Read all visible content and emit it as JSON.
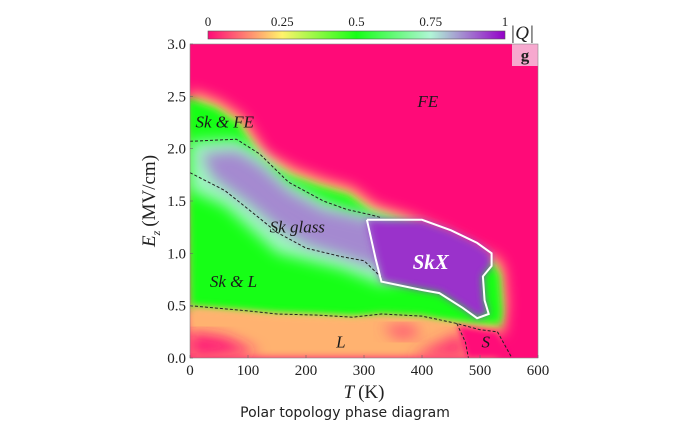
{
  "chart_data": {
    "type": "heatmap",
    "title": "",
    "xlabel": "T (K)",
    "xlabel_var": "T",
    "xlabel_unit": "(K)",
    "ylabel_var": "E",
    "ylabel_sub": "z",
    "ylabel_unit": "(MV/cm)",
    "xlim": [
      0,
      600
    ],
    "ylim": [
      0,
      3.0
    ],
    "x_ticks": [
      0,
      100,
      200,
      300,
      400,
      500,
      600
    ],
    "x_tick_labels": [
      "0",
      "100",
      "200",
      "300",
      "400",
      "500",
      "600"
    ],
    "y_ticks": [
      0,
      0.5,
      1.0,
      1.5,
      2.0,
      2.5,
      3.0
    ],
    "y_tick_labels": [
      "0.0",
      "0.5",
      "1.0",
      "1.5",
      "2.0",
      "2.5",
      "3.0"
    ],
    "colorbar": {
      "label": "|Q|",
      "range": [
        0,
        1
      ],
      "ticks": [
        0,
        0.25,
        0.5,
        0.75,
        1
      ],
      "tick_labels": [
        "0",
        "0.25",
        "0.5",
        "0.75",
        "1"
      ],
      "stops": [
        {
          "value": 0,
          "color": "#ff0a78"
        },
        {
          "value": 0.25,
          "color": "#fff36b"
        },
        {
          "value": 0.5,
          "color": "#16ff16"
        },
        {
          "value": 0.75,
          "color": "#b0f5d6"
        },
        {
          "value": 1,
          "color": "#9400c8"
        }
      ]
    },
    "panel_label": "g",
    "regions": [
      {
        "name": "FE",
        "label": "FE",
        "at": [
          410,
          2.4
        ],
        "value": 0.0
      },
      {
        "name": "Sk & FE",
        "label": "Sk & FE",
        "at": [
          60,
          2.2
        ],
        "value": 0.5
      },
      {
        "name": "Sk glass",
        "label": "Sk glass",
        "at": [
          185,
          1.2
        ],
        "value": 0.85
      },
      {
        "name": "SkX",
        "label": "SkX",
        "at": [
          415,
          0.85
        ],
        "value": 1.0
      },
      {
        "name": "Sk & L",
        "label": "Sk & L",
        "at": [
          75,
          0.68
        ],
        "value": 0.5
      },
      {
        "name": "L",
        "label": "L",
        "at": [
          260,
          0.1
        ],
        "value": 0.1
      },
      {
        "name": "S",
        "label": "S",
        "at": [
          510,
          0.1
        ],
        "value": 0.0
      }
    ],
    "boundaries": {
      "outer_top": [
        [
          0,
          2.55
        ],
        [
          50,
          2.45
        ],
        [
          90,
          2.3
        ],
        [
          130,
          1.95
        ],
        [
          180,
          1.8
        ],
        [
          230,
          1.7
        ],
        [
          280,
          1.62
        ],
        [
          320,
          1.45
        ],
        [
          380,
          1.35
        ],
        [
          440,
          1.2
        ],
        [
          490,
          1.05
        ],
        [
          530,
          0.95
        ],
        [
          540,
          0.85
        ],
        [
          545,
          0.5
        ],
        [
          540,
          0.3
        ]
      ],
      "sk_fe_lower": [
        [
          0,
          2.07
        ],
        [
          80,
          2.09
        ],
        [
          120,
          1.95
        ],
        [
          170,
          1.68
        ],
        [
          230,
          1.5
        ],
        [
          270,
          1.42
        ],
        [
          310,
          1.37
        ],
        [
          330,
          1.34
        ]
      ],
      "sk_glass_lower": [
        [
          0,
          1.77
        ],
        [
          60,
          1.6
        ],
        [
          110,
          1.38
        ],
        [
          150,
          1.2
        ],
        [
          200,
          1.05
        ],
        [
          260,
          0.97
        ],
        [
          300,
          0.93
        ],
        [
          330,
          0.77
        ]
      ],
      "skx": [
        [
          305,
          1.32
        ],
        [
          400,
          1.32
        ],
        [
          450,
          1.22
        ],
        [
          495,
          1.1
        ],
        [
          520,
          1.0
        ],
        [
          520,
          0.88
        ],
        [
          505,
          0.78
        ],
        [
          508,
          0.55
        ],
        [
          515,
          0.42
        ],
        [
          495,
          0.38
        ],
        [
          470,
          0.48
        ],
        [
          430,
          0.62
        ],
        [
          400,
          0.65
        ],
        [
          330,
          0.73
        ],
        [
          320,
          0.95
        ],
        [
          305,
          1.32
        ]
      ],
      "l_upper": [
        [
          0,
          0.5
        ],
        [
          40,
          0.48
        ],
        [
          100,
          0.45
        ],
        [
          150,
          0.42
        ],
        [
          220,
          0.41
        ],
        [
          280,
          0.39
        ],
        [
          330,
          0.42
        ],
        [
          400,
          0.4
        ],
        [
          460,
          0.33
        ],
        [
          500,
          0.27
        ],
        [
          530,
          0.25
        ]
      ],
      "s_left": [
        [
          460,
          0.33
        ],
        [
          475,
          0.15
        ],
        [
          480,
          0.0
        ]
      ],
      "s_right": [
        [
          530,
          0.25
        ],
        [
          545,
          0.1
        ],
        [
          555,
          0.0
        ]
      ]
    }
  },
  "caption": "Polar topology phase diagram"
}
